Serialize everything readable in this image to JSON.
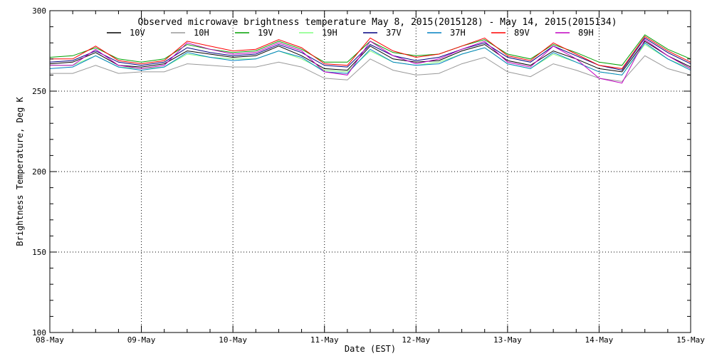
{
  "chart_data": {
    "type": "line",
    "title": "Observed microwave brightness temperature May  8, 2015(2015128) - May 14, 2015(2015134)",
    "xlabel": "Date (EST)",
    "ylabel": "Brightness Temperature, Deg K",
    "xlim": [
      "2015-05-08",
      "2015-05-15"
    ],
    "ylim": [
      100,
      300
    ],
    "yticks": [
      100,
      150,
      200,
      250,
      300
    ],
    "xticks": [
      "08-May",
      "09-May",
      "10-May",
      "11-May",
      "12-May",
      "13-May",
      "14-May",
      "15-May"
    ],
    "grid": true,
    "legend_position": "top",
    "x": [
      "2015-05-08 00:00",
      "2015-05-08 06:00",
      "2015-05-08 12:00",
      "2015-05-08 18:00",
      "2015-05-09 00:00",
      "2015-05-09 06:00",
      "2015-05-09 12:00",
      "2015-05-09 18:00",
      "2015-05-10 00:00",
      "2015-05-10 06:00",
      "2015-05-10 12:00",
      "2015-05-10 18:00",
      "2015-05-11 00:00",
      "2015-05-11 06:00",
      "2015-05-11 12:00",
      "2015-05-11 18:00",
      "2015-05-12 00:00",
      "2015-05-12 06:00",
      "2015-05-12 12:00",
      "2015-05-12 18:00",
      "2015-05-13 00:00",
      "2015-05-13 06:00",
      "2015-05-13 12:00",
      "2015-05-13 18:00",
      "2015-05-14 00:00",
      "2015-05-14 06:00",
      "2015-05-14 12:00",
      "2015-05-14 18:00",
      "2015-05-15 00:00"
    ],
    "series": [
      {
        "name": "10V",
        "color": "#000000",
        "values": [
          267,
          268,
          274,
          266,
          265,
          267,
          275,
          273,
          271,
          272,
          278,
          272,
          264,
          263,
          278,
          270,
          268,
          269,
          275,
          279,
          269,
          266,
          275,
          270,
          264,
          262,
          281,
          272,
          265
        ]
      },
      {
        "name": "10H",
        "color": "#999999",
        "values": [
          261,
          261,
          266,
          261,
          262,
          262,
          267,
          266,
          265,
          265,
          268,
          265,
          258,
          257,
          270,
          263,
          260,
          261,
          267,
          271,
          262,
          259,
          267,
          263,
          258,
          256,
          272,
          264,
          260
        ]
      },
      {
        "name": "19V",
        "color": "#00a000",
        "values": [
          271,
          272,
          277,
          270,
          268,
          270,
          279,
          276,
          274,
          275,
          281,
          276,
          268,
          268,
          281,
          274,
          272,
          273,
          278,
          282,
          273,
          270,
          279,
          274,
          268,
          266,
          285,
          276,
          270
        ]
      },
      {
        "name": "19H",
        "color": "#80ff80",
        "values": [
          266,
          266,
          272,
          265,
          264,
          265,
          273,
          271,
          270,
          270,
          275,
          270,
          263,
          262,
          275,
          268,
          266,
          268,
          273,
          277,
          267,
          264,
          273,
          268,
          262,
          260,
          279,
          270,
          264
        ]
      },
      {
        "name": "37V",
        "color": "#000080",
        "values": [
          268,
          269,
          275,
          268,
          266,
          268,
          277,
          274,
          272,
          273,
          279,
          274,
          266,
          265,
          279,
          272,
          269,
          271,
          276,
          280,
          271,
          268,
          278,
          272,
          266,
          263,
          283,
          274,
          267
        ]
      },
      {
        "name": "37H",
        "color": "#0080c0",
        "values": [
          264,
          265,
          272,
          265,
          263,
          265,
          274,
          271,
          269,
          270,
          275,
          271,
          262,
          261,
          276,
          268,
          266,
          267,
          273,
          277,
          267,
          264,
          274,
          268,
          262,
          260,
          280,
          270,
          263
        ]
      },
      {
        "name": "89V",
        "color": "#ff0000",
        "values": [
          270,
          270,
          278,
          269,
          267,
          269,
          281,
          278,
          275,
          276,
          282,
          277,
          267,
          266,
          283,
          275,
          271,
          273,
          278,
          283,
          272,
          269,
          280,
          273,
          266,
          264,
          284,
          275,
          268
        ]
      },
      {
        "name": "89H",
        "color": "#c000c0",
        "values": [
          266,
          266,
          276,
          266,
          264,
          266,
          280,
          276,
          273,
          274,
          280,
          275,
          262,
          260,
          281,
          272,
          267,
          270,
          276,
          281,
          268,
          265,
          278,
          270,
          258,
          255,
          282,
          272,
          264
        ]
      }
    ]
  }
}
